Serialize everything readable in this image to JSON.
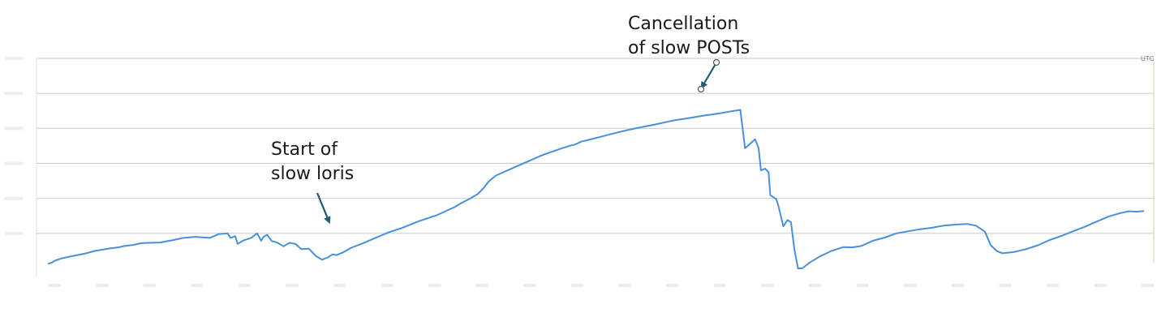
{
  "chart_data": {
    "type": "line",
    "title": "",
    "xlabel": "",
    "ylabel": "",
    "timezone_label": "UTC",
    "grid": true,
    "ylim": [
      0,
      6
    ],
    "colors": {
      "line": "#4a90d9",
      "grid": "#d0d0d0",
      "arrow": "#1f5a78"
    },
    "series": [
      {
        "x": [
          0,
          0.6,
          1.2,
          2.2,
          3.5,
          5,
          6.5,
          8,
          10.5,
          11.5,
          12.2,
          13,
          14.5,
          15.5,
          16,
          17,
          19,
          21,
          23,
          25,
          27.5,
          29,
          30.5,
          31,
          31.8,
          32.2,
          33.2,
          34.5,
          35.5,
          36.2,
          36.6,
          37.2,
          38,
          38.7,
          39.3,
          40,
          41,
          42,
          43,
          44.3,
          45.5,
          46.5,
          47.5,
          48.3,
          49,
          50,
          51.5,
          53.5,
          56,
          58,
          60,
          63,
          66,
          69,
          70,
          71.5,
          73,
          74,
          74.8,
          76,
          78,
          81,
          84,
          87,
          88.5,
          89.5,
          90.5,
          92,
          94,
          97,
          100,
          103,
          106,
          109,
          111.5,
          114,
          116,
          117.5,
          118.3,
          119.3,
          120,
          120.6,
          121,
          121.7,
          122.3,
          122.6,
          123.6,
          124,
          124.8,
          125.5,
          126.1,
          126.7,
          127.3,
          128,
          129.3,
          131,
          133,
          135,
          136.5,
          138,
          140,
          142,
          144,
          146,
          148,
          150,
          152,
          154,
          156,
          157.5,
          159,
          160,
          161,
          162,
          164,
          166,
          168,
          170,
          172,
          174,
          176,
          178,
          180,
          182,
          183.4,
          184.7,
          186
        ],
        "y": [
          0.13,
          0.16,
          0.22,
          0.28,
          0.33,
          0.38,
          0.43,
          0.5,
          0.57,
          0.59,
          0.61,
          0.64,
          0.67,
          0.71,
          0.72,
          0.73,
          0.74,
          0.8,
          0.87,
          0.9,
          0.87,
          0.98,
          1.0,
          0.87,
          0.92,
          0.7,
          0.8,
          0.87,
          1.0,
          0.79,
          0.9,
          0.96,
          0.78,
          0.75,
          0.7,
          0.63,
          0.73,
          0.7,
          0.55,
          0.56,
          0.35,
          0.25,
          0.31,
          0.4,
          0.38,
          0.45,
          0.59,
          0.72,
          0.9,
          1.04,
          1.15,
          1.35,
          1.52,
          1.75,
          1.85,
          1.98,
          2.13,
          2.31,
          2.48,
          2.65,
          2.8,
          3.02,
          3.24,
          3.42,
          3.5,
          3.54,
          3.62,
          3.68,
          3.77,
          3.9,
          4.01,
          4.11,
          4.22,
          4.3,
          4.37,
          4.43,
          4.49,
          4.53,
          3.43,
          3.58,
          3.69,
          3.44,
          2.8,
          2.85,
          2.75,
          2.09,
          1.98,
          1.76,
          1.2,
          1.38,
          1.32,
          0.52,
          0.0,
          0.0,
          0.17,
          0.34,
          0.5,
          0.61,
          0.6,
          0.64,
          0.79,
          0.88,
          1.0,
          1.06,
          1.12,
          1.16,
          1.22,
          1.25,
          1.27,
          1.22,
          1.05,
          0.66,
          0.5,
          0.43,
          0.47,
          0.55,
          0.66,
          0.81,
          0.93,
          1.06,
          1.19,
          1.34,
          1.48,
          1.58,
          1.63,
          1.62,
          1.64
        ]
      }
    ]
  },
  "annotations": [
    {
      "text": "Start of\nslow loris"
    },
    {
      "text": "Cancellation\nof slow POSTs"
    }
  ]
}
